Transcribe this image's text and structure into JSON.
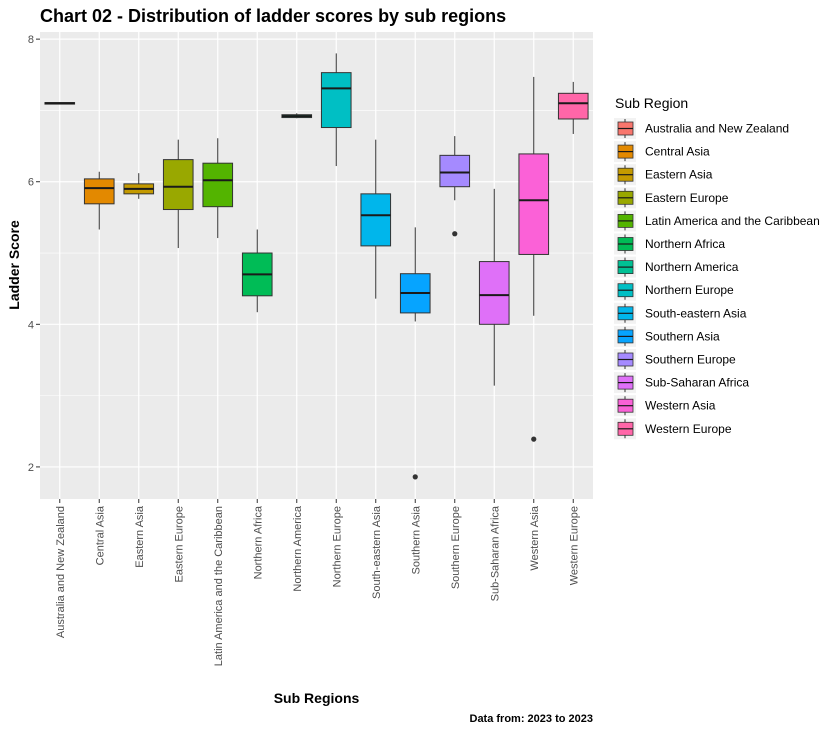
{
  "chart_data": {
    "type": "box",
    "title": "Chart 02 - Distribution of ladder scores by sub regions",
    "xlabel": "Sub Regions",
    "ylabel": "Ladder Score",
    "caption": "Data from: 2023  to  2023",
    "ylim": [
      1.55,
      8.1
    ],
    "yticks": [
      2,
      4,
      6,
      8
    ],
    "grid": true,
    "legend": {
      "title": "Sub Region",
      "placement": "right"
    },
    "categories": [
      "Australia and New Zealand",
      "Central Asia",
      "Eastern Asia",
      "Eastern Europe",
      "Latin America and the Caribbean",
      "Northern Africa",
      "Northern America",
      "Northern Europe",
      "South-eastern Asia",
      "Southern Asia",
      "Southern Europe",
      "Sub-Saharan Africa",
      "Western Asia",
      "Western Europe"
    ],
    "colors": [
      "#F8766D",
      "#E38900",
      "#C49A00",
      "#99A800",
      "#53B400",
      "#00BC56",
      "#00C094",
      "#00BFC4",
      "#00B6EB",
      "#06A4FF",
      "#A58AFF",
      "#DF70F8",
      "#FB61D7",
      "#FF66A8"
    ],
    "boxes": [
      {
        "min": 7.09,
        "q1": 7.09,
        "median": 7.1,
        "q3": 7.11,
        "max": 7.11,
        "outliers": []
      },
      {
        "min": 5.33,
        "q1": 5.69,
        "median": 5.91,
        "q3": 6.04,
        "max": 6.14,
        "outliers": []
      },
      {
        "min": 5.76,
        "q1": 5.83,
        "median": 5.9,
        "q3": 5.97,
        "max": 6.12,
        "outliers": []
      },
      {
        "min": 5.07,
        "q1": 5.61,
        "median": 5.93,
        "q3": 6.31,
        "max": 6.59,
        "outliers": []
      },
      {
        "min": 5.21,
        "q1": 5.65,
        "median": 6.02,
        "q3": 6.26,
        "max": 6.61,
        "outliers": []
      },
      {
        "min": 4.17,
        "q1": 4.4,
        "median": 4.7,
        "q3": 5.0,
        "max": 5.33,
        "outliers": []
      },
      {
        "min": 6.89,
        "q1": 6.9,
        "median": 6.92,
        "q3": 6.94,
        "max": 6.96,
        "outliers": []
      },
      {
        "min": 6.22,
        "q1": 6.76,
        "median": 7.31,
        "q3": 7.53,
        "max": 7.8,
        "outliers": []
      },
      {
        "min": 4.36,
        "q1": 5.1,
        "median": 5.53,
        "q3": 5.83,
        "max": 6.59,
        "outliers": []
      },
      {
        "min": 4.04,
        "q1": 4.16,
        "median": 4.44,
        "q3": 4.71,
        "max": 5.36,
        "outliers": [
          1.86
        ]
      },
      {
        "min": 5.74,
        "q1": 5.93,
        "median": 6.13,
        "q3": 6.37,
        "max": 6.64,
        "outliers": [
          5.27
        ]
      },
      {
        "min": 3.14,
        "q1": 4.0,
        "median": 4.41,
        "q3": 4.88,
        "max": 5.9,
        "outliers": []
      },
      {
        "min": 4.12,
        "q1": 4.98,
        "median": 5.74,
        "q3": 6.39,
        "max": 7.47,
        "outliers": [
          2.39
        ]
      },
      {
        "min": 6.67,
        "q1": 6.88,
        "median": 7.1,
        "q3": 7.24,
        "max": 7.4,
        "outliers": []
      }
    ]
  }
}
